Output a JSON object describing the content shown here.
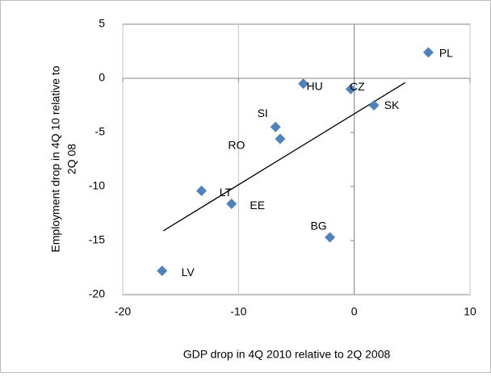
{
  "chart_data": {
    "type": "scatter",
    "xlabel": "GDP drop in 4Q 2010 relative to 2Q 2008",
    "ylabel": [
      "Employment drop in 4Q 10 relative to",
      "2Q 08"
    ],
    "labels": [
      "PL",
      "HU",
      "CZ",
      "SK",
      "SI",
      "RO",
      "LT",
      "EE",
      "BG",
      "LV"
    ],
    "x": [
      6.4,
      -4.4,
      -0.3,
      1.7,
      -6.8,
      -6.4,
      -13.2,
      -10.6,
      -2.1,
      -16.6
    ],
    "y": [
      2.4,
      -0.5,
      -1.0,
      -2.5,
      -4.5,
      -5.6,
      -10.4,
      -11.6,
      -14.7,
      -17.8
    ],
    "color": "#4f81bd",
    "trendline": {
      "x": [
        -16.5,
        4.4
      ],
      "y": [
        -14.1,
        -0.4
      ]
    },
    "xlim": [
      -20,
      10
    ],
    "ylim": [
      -20,
      5
    ],
    "xticks": [
      -20,
      -10,
      0,
      10
    ],
    "yticks": [
      -20,
      -15,
      -10,
      -5,
      0,
      5
    ],
    "grid": "x"
  }
}
